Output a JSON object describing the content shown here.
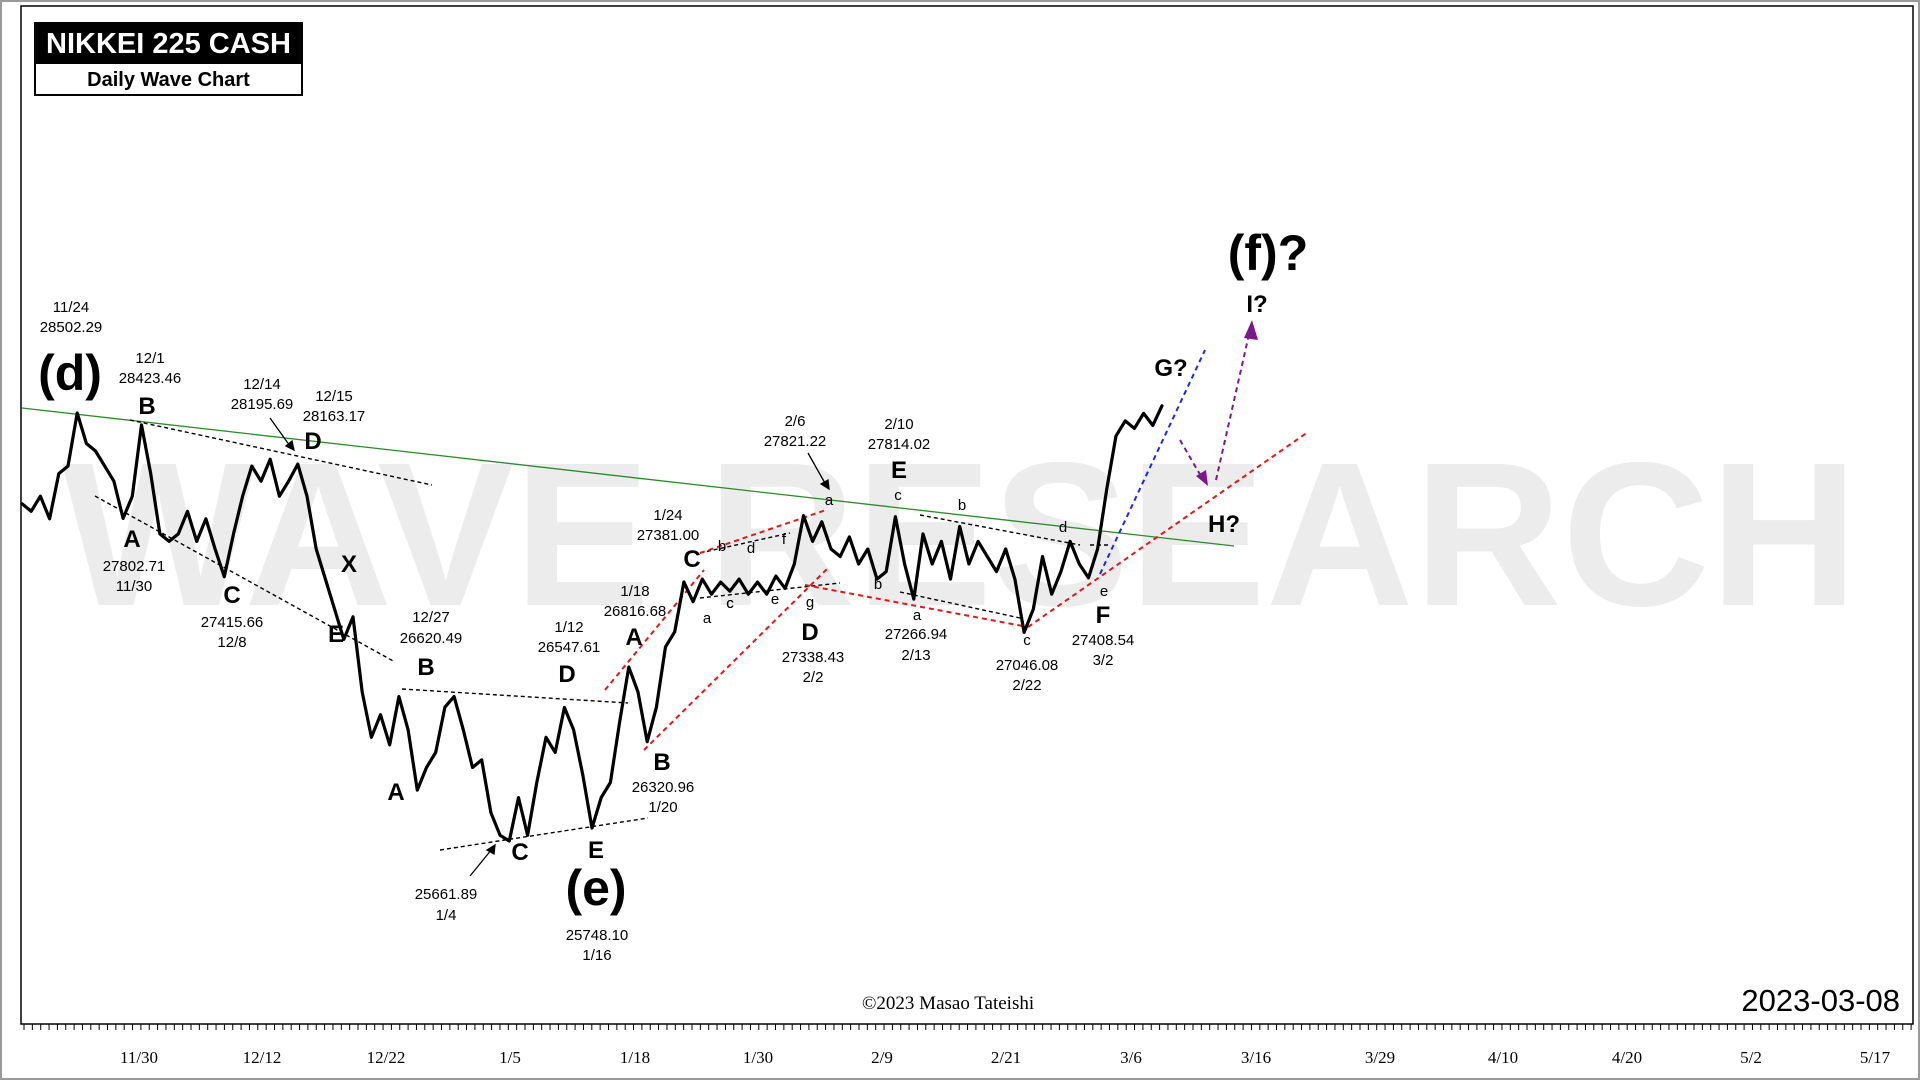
{
  "title": "NIKKEI 225 CASH",
  "subtitle": "Daily Wave Chart",
  "date_stamp": "2023-03-08",
  "copyright": "©2023 Masao Tateishi",
  "watermark": "WAVE RESEARCH",
  "chart_data": {
    "type": "line",
    "x_tick_labels": [
      "11/30",
      "12/12",
      "12/22",
      "1/5",
      "1/18",
      "1/30",
      "2/9",
      "2/21",
      "3/6",
      "3/16",
      "3/29",
      "4/10",
      "4/20",
      "5/2",
      "5/17"
    ],
    "series": [
      {
        "values": [
          27900,
          27850,
          27950,
          27800,
          28100,
          28150,
          28502.29,
          28300,
          28250,
          28150,
          28050,
          27802.71,
          27950,
          28423.46,
          28100,
          27700,
          27650,
          27700,
          27850,
          27650,
          27800,
          27600,
          27415.66,
          27700,
          27950,
          28150,
          28050,
          28195.69,
          27950,
          28050,
          28163.17,
          27950,
          27600,
          27400,
          27200,
          27000,
          27150,
          26650,
          26350,
          26500,
          26300,
          26620.49,
          26400,
          26000,
          26150,
          26250,
          26550,
          26620.49,
          26400,
          26150,
          26200,
          25850,
          25700,
          25661.89,
          25950,
          25700,
          26050,
          26350,
          26250,
          26547.61,
          26400,
          26100,
          25748.1,
          25950,
          26050,
          26450,
          26816.68,
          26650,
          26320.96,
          26550,
          26950,
          27050,
          27381.0,
          27250,
          27400,
          27300,
          27380,
          27320,
          27400,
          27300,
          27380,
          27300,
          27420,
          27338.43,
          27500,
          27821.22,
          27650,
          27780,
          27600,
          27550,
          27680,
          27500,
          27600,
          27400,
          27450,
          27814.02,
          27500,
          27266.94,
          27700,
          27500,
          27650,
          27400,
          27750,
          27500,
          27650,
          27550,
          27450,
          27600,
          27400,
          27046.08,
          27200,
          27550,
          27300,
          27450,
          27650,
          27500,
          27408.54,
          27600,
          28000,
          28350,
          28450,
          28400,
          28500,
          28420,
          28550
        ]
      }
    ],
    "wave_labels": [
      "(d)",
      "(e)",
      "(f)?",
      "A",
      "B",
      "C",
      "D",
      "E",
      "X",
      "A",
      "B",
      "C",
      "D",
      "E",
      "A",
      "B",
      "C",
      "D",
      "E",
      "F",
      "G?",
      "H?",
      "I?"
    ],
    "small_labels": [
      "b",
      "c",
      "d",
      "f",
      "a",
      "c",
      "e",
      "g",
      "a",
      "c",
      "b",
      "a",
      "b",
      "c",
      "d",
      "e"
    ],
    "price_annotations": [
      {
        "date": "11/24",
        "price": "28502.29"
      },
      {
        "date": "12/1",
        "price": "28423.46"
      },
      {
        "date": "12/14",
        "price": "28195.69"
      },
      {
        "date": "12/15",
        "price": "28163.17"
      },
      {
        "date": "11/30",
        "price": "27802.71"
      },
      {
        "date": "12/8",
        "price": "27415.66"
      },
      {
        "date": "12/27",
        "price": "26620.49"
      },
      {
        "date": "1/12",
        "price": "26547.61"
      },
      {
        "date": "1/18",
        "price": "26816.68"
      },
      {
        "date": "1/24",
        "price": "27381.00"
      },
      {
        "date": "2/6",
        "price": "27821.22"
      },
      {
        "date": "2/10",
        "price": "27814.02"
      },
      {
        "date": "1/4",
        "price": "25661.89"
      },
      {
        "date": "1/16",
        "price": "25748.10"
      },
      {
        "date": "1/20",
        "price": "26320.96"
      },
      {
        "date": "2/2",
        "price": "27338.43"
      },
      {
        "date": "2/13",
        "price": "27266.94"
      },
      {
        "date": "2/22",
        "price": "27046.08"
      },
      {
        "date": "3/2",
        "price": "27408.54"
      }
    ]
  }
}
